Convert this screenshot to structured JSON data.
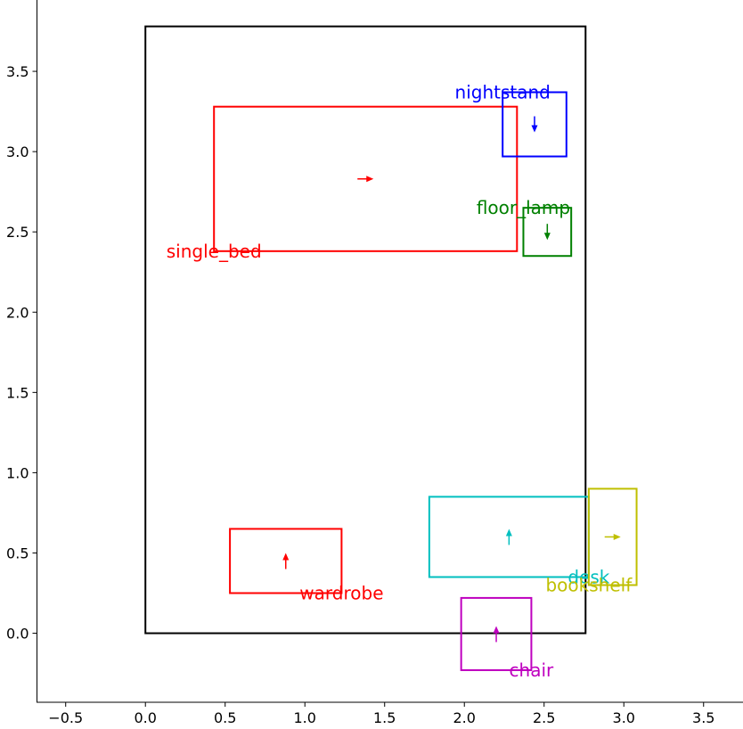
{
  "chart_data": {
    "type": "floor-plan",
    "xlim": [
      -0.68,
      3.75
    ],
    "ylim": [
      -0.43,
      3.95
    ],
    "x_ticks": [
      -0.5,
      0.0,
      0.5,
      1.0,
      1.5,
      2.0,
      2.5,
      3.0,
      3.5
    ],
    "y_ticks": [
      0.0,
      0.5,
      1.0,
      1.5,
      2.0,
      2.5,
      3.0,
      3.5
    ],
    "x_tick_labels": [
      "−0.5",
      "0.0",
      "0.5",
      "1.0",
      "1.5",
      "2.0",
      "2.5",
      "3.0",
      "3.5"
    ],
    "y_tick_labels": [
      "0.0",
      "0.5",
      "1.0",
      "1.5",
      "2.0",
      "2.5",
      "3.0",
      "3.5"
    ],
    "room": {
      "x0": 0.0,
      "y0": 0.0,
      "x1": 2.76,
      "y1": 3.78,
      "color": "#000000"
    },
    "objects": [
      {
        "name": "single_bed",
        "x0": 0.43,
        "y0": 2.38,
        "x1": 2.33,
        "y1": 3.28,
        "color": "#ff0000",
        "dir": [
          1,
          0
        ],
        "label_at": [
          0.43,
          2.38
        ]
      },
      {
        "name": "nightstand",
        "x0": 2.24,
        "y0": 2.97,
        "x1": 2.64,
        "y1": 3.37,
        "color": "#0000ff",
        "dir": [
          0,
          -1
        ],
        "label_at": [
          2.24,
          3.37
        ]
      },
      {
        "name": "floor_lamp",
        "x0": 2.37,
        "y0": 2.35,
        "x1": 2.67,
        "y1": 2.65,
        "color": "#008000",
        "dir": [
          0,
          -1
        ],
        "label_at": [
          2.37,
          2.65
        ]
      },
      {
        "name": "wardrobe",
        "x0": 0.53,
        "y0": 0.25,
        "x1": 1.23,
        "y1": 0.65,
        "color": "#ff0000",
        "dir": [
          0,
          1
        ],
        "label_at": [
          1.23,
          0.25
        ]
      },
      {
        "name": "desk",
        "x0": 1.78,
        "y0": 0.35,
        "x1": 2.78,
        "y1": 0.85,
        "color": "#00bfbf",
        "dir": [
          0,
          1
        ],
        "label_at": [
          2.78,
          0.35
        ]
      },
      {
        "name": "bookshelf",
        "x0": 2.78,
        "y0": 0.3,
        "x1": 3.08,
        "y1": 0.9,
        "color": "#bfbf00",
        "dir": [
          1,
          0
        ],
        "label_at": [
          2.78,
          0.3
        ]
      },
      {
        "name": "chair",
        "x0": 1.98,
        "y0": -0.23,
        "x1": 2.42,
        "y1": 0.22,
        "color": "#bf00bf",
        "dir": [
          0,
          1
        ],
        "label_at": [
          2.42,
          -0.23
        ]
      }
    ]
  }
}
